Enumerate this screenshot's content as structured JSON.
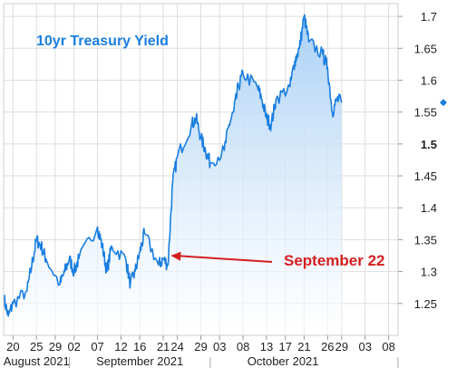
{
  "chart_data": {
    "type": "area",
    "title": "10yr Treasury Yield",
    "xlabel": "",
    "ylabel": "",
    "ylim": [
      1.2,
      1.72
    ],
    "y_ticks": [
      "1.25",
      "1.3",
      "1.35",
      "1.4",
      "1.45",
      "1.5",
      "1.55",
      "1.6",
      "1.65",
      "1.7"
    ],
    "y_ticks_bold": [
      "1.5"
    ],
    "y_tick_values": [
      1.25,
      1.3,
      1.35,
      1.4,
      1.45,
      1.5,
      1.55,
      1.6,
      1.65,
      1.7
    ],
    "x_ticks": [
      "20",
      "25",
      "29",
      "02",
      "07",
      "12",
      "16",
      "21",
      "24",
      "29",
      "03",
      "08",
      "13",
      "17",
      "21",
      "26",
      "29",
      "03",
      "08"
    ],
    "x_tick_dates": [
      "2021-08-20",
      "2021-08-25",
      "2021-08-29",
      "2021-09-02",
      "2021-09-07",
      "2021-09-12",
      "2021-09-16",
      "2021-09-21",
      "2021-09-24",
      "2021-09-29",
      "2021-10-03",
      "2021-10-08",
      "2021-10-13",
      "2021-10-17",
      "2021-10-21",
      "2021-10-26",
      "2021-10-29",
      "2021-11-03",
      "2021-11-08"
    ],
    "periods": [
      "August 2021",
      "September 2021",
      "October 2021"
    ],
    "grid": true,
    "current_value_marker": 1.565,
    "colors": {
      "line": "#1a7ee0",
      "fill_top": "#a9d0f5",
      "fill_bottom": "#ffffff",
      "title": "#1a7ee0",
      "annotation": "#d41f1f",
      "grid": "#dddddd"
    },
    "annotation": {
      "text": "September 22",
      "date": "2021-09-22",
      "value": 1.325
    },
    "series": [
      {
        "x": [
          "2021-08-18",
          "2021-08-19",
          "2021-08-20",
          "2021-08-23",
          "2021-08-24",
          "2021-08-25",
          "2021-08-26",
          "2021-08-27",
          "2021-08-30",
          "2021-08-31",
          "2021-09-01",
          "2021-09-02",
          "2021-09-03",
          "2021-09-07",
          "2021-09-08",
          "2021-09-09",
          "2021-09-10",
          "2021-09-13",
          "2021-09-14",
          "2021-09-15",
          "2021-09-16",
          "2021-09-17",
          "2021-09-20",
          "2021-09-21",
          "2021-09-22",
          "2021-09-23",
          "2021-09-24",
          "2021-09-27",
          "2021-09-28",
          "2021-09-29",
          "2021-09-30",
          "2021-10-01",
          "2021-10-04",
          "2021-10-05",
          "2021-10-06",
          "2021-10-07",
          "2021-10-08",
          "2021-10-11",
          "2021-10-12",
          "2021-10-13",
          "2021-10-14",
          "2021-10-15",
          "2021-10-18",
          "2021-10-19",
          "2021-10-20",
          "2021-10-21",
          "2021-10-22",
          "2021-10-25",
          "2021-10-26",
          "2021-10-27",
          "2021-10-28",
          "2021-10-29"
        ],
        "values": [
          1.26,
          1.23,
          1.25,
          1.27,
          1.31,
          1.35,
          1.34,
          1.32,
          1.28,
          1.3,
          1.32,
          1.3,
          1.32,
          1.37,
          1.34,
          1.3,
          1.34,
          1.32,
          1.28,
          1.3,
          1.33,
          1.36,
          1.31,
          1.32,
          1.31,
          1.44,
          1.48,
          1.53,
          1.54,
          1.51,
          1.49,
          1.47,
          1.49,
          1.53,
          1.55,
          1.59,
          1.61,
          1.59,
          1.57,
          1.54,
          1.53,
          1.57,
          1.59,
          1.63,
          1.65,
          1.7,
          1.66,
          1.64,
          1.62,
          1.55,
          1.57,
          1.565
        ]
      }
    ]
  }
}
